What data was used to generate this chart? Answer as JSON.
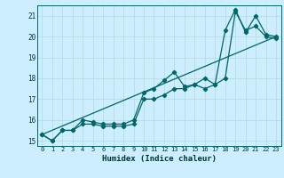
{
  "xlabel": "Humidex (Indice chaleur)",
  "bg_color": "#cceeff",
  "grid_color": "#bbdddd",
  "line_color": "#006666",
  "xlim": [
    -0.5,
    23.5
  ],
  "ylim": [
    14.75,
    21.5
  ],
  "xticks": [
    0,
    1,
    2,
    3,
    4,
    5,
    6,
    7,
    8,
    9,
    10,
    11,
    12,
    13,
    14,
    15,
    16,
    17,
    18,
    19,
    20,
    21,
    22,
    23
  ],
  "yticks": [
    15,
    16,
    17,
    18,
    19,
    20,
    21
  ],
  "line1_x": [
    0,
    1,
    2,
    3,
    4,
    5,
    6,
    7,
    8,
    9,
    10,
    11,
    12,
    13,
    14,
    15,
    16,
    17,
    18,
    19,
    20,
    21,
    22,
    23
  ],
  "line1_y": [
    15.3,
    15.0,
    15.5,
    15.5,
    15.8,
    15.8,
    15.7,
    15.7,
    15.7,
    15.8,
    17.0,
    17.0,
    17.2,
    17.5,
    17.5,
    17.7,
    17.5,
    17.7,
    18.0,
    21.2,
    20.3,
    20.5,
    20.0,
    19.9
  ],
  "line2_x": [
    0,
    1,
    2,
    3,
    4,
    5,
    6,
    7,
    8,
    9,
    10,
    11,
    12,
    13,
    14,
    15,
    16,
    17,
    18,
    19,
    20,
    21,
    22,
    23
  ],
  "line2_y": [
    15.3,
    15.0,
    15.5,
    15.5,
    16.0,
    15.9,
    15.8,
    15.8,
    15.8,
    16.0,
    17.3,
    17.5,
    17.9,
    18.3,
    17.6,
    17.7,
    18.0,
    17.7,
    20.3,
    21.3,
    20.2,
    21.0,
    20.1,
    20.0
  ],
  "line3_x": [
    0,
    23
  ],
  "line3_y": [
    15.3,
    20.0
  ]
}
